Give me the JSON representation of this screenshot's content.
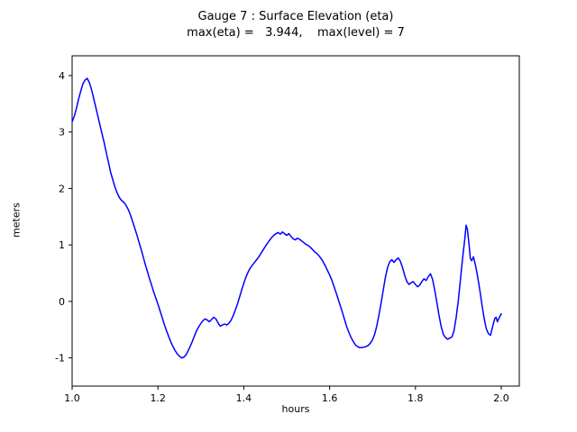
{
  "chart_data": {
    "type": "line",
    "title": "Gauge 7 : Surface Elevation (eta)",
    "subtitle": "max(eta) =   3.944,    max(level) = 7",
    "xlabel": "hours",
    "ylabel": "meters",
    "max_eta": 3.944,
    "max_level": 7,
    "xlim": [
      1.0,
      2.042
    ],
    "ylim": [
      -1.5,
      4.35
    ],
    "xticks": [
      1.0,
      1.2,
      1.4,
      1.6,
      1.8,
      2.0
    ],
    "xtick_labels": [
      "1.0",
      "1.2",
      "1.4",
      "1.6",
      "1.8",
      "2.0"
    ],
    "yticks": [
      -1,
      0,
      1,
      2,
      3,
      4
    ],
    "ytick_labels": [
      "-1",
      "0",
      "1",
      "2",
      "3",
      "4"
    ],
    "grid": false,
    "legend": "none",
    "line_color": "#0000ff",
    "frame_color": "#000000",
    "series": [
      {
        "name": "eta",
        "points": [
          [
            1.0,
            3.18
          ],
          [
            1.005,
            3.28
          ],
          [
            1.01,
            3.42
          ],
          [
            1.015,
            3.58
          ],
          [
            1.02,
            3.72
          ],
          [
            1.025,
            3.85
          ],
          [
            1.03,
            3.92
          ],
          [
            1.035,
            3.95
          ],
          [
            1.04,
            3.88
          ],
          [
            1.045,
            3.76
          ],
          [
            1.05,
            3.6
          ],
          [
            1.055,
            3.44
          ],
          [
            1.06,
            3.28
          ],
          [
            1.065,
            3.12
          ],
          [
            1.07,
            2.96
          ],
          [
            1.075,
            2.8
          ],
          [
            1.08,
            2.62
          ],
          [
            1.085,
            2.45
          ],
          [
            1.09,
            2.28
          ],
          [
            1.095,
            2.15
          ],
          [
            1.1,
            2.02
          ],
          [
            1.105,
            1.92
          ],
          [
            1.11,
            1.84
          ],
          [
            1.115,
            1.79
          ],
          [
            1.12,
            1.76
          ],
          [
            1.125,
            1.71
          ],
          [
            1.13,
            1.64
          ],
          [
            1.135,
            1.55
          ],
          [
            1.14,
            1.44
          ],
          [
            1.145,
            1.32
          ],
          [
            1.15,
            1.2
          ],
          [
            1.155,
            1.07
          ],
          [
            1.16,
            0.94
          ],
          [
            1.165,
            0.81
          ],
          [
            1.17,
            0.67
          ],
          [
            1.175,
            0.54
          ],
          [
            1.18,
            0.41
          ],
          [
            1.185,
            0.29
          ],
          [
            1.19,
            0.17
          ],
          [
            1.195,
            0.06
          ],
          [
            1.2,
            -0.05
          ],
          [
            1.205,
            -0.17
          ],
          [
            1.21,
            -0.29
          ],
          [
            1.215,
            -0.41
          ],
          [
            1.22,
            -0.52
          ],
          [
            1.225,
            -0.62
          ],
          [
            1.23,
            -0.72
          ],
          [
            1.235,
            -0.8
          ],
          [
            1.24,
            -0.87
          ],
          [
            1.245,
            -0.93
          ],
          [
            1.25,
            -0.97
          ],
          [
            1.255,
            -1.0
          ],
          [
            1.26,
            -0.99
          ],
          [
            1.265,
            -0.95
          ],
          [
            1.27,
            -0.88
          ],
          [
            1.275,
            -0.8
          ],
          [
            1.28,
            -0.71
          ],
          [
            1.285,
            -0.61
          ],
          [
            1.29,
            -0.52
          ],
          [
            1.295,
            -0.45
          ],
          [
            1.3,
            -0.39
          ],
          [
            1.305,
            -0.34
          ],
          [
            1.31,
            -0.31
          ],
          [
            1.315,
            -0.33
          ],
          [
            1.32,
            -0.36
          ],
          [
            1.325,
            -0.32
          ],
          [
            1.33,
            -0.28
          ],
          [
            1.335,
            -0.31
          ],
          [
            1.34,
            -0.38
          ],
          [
            1.345,
            -0.44
          ],
          [
            1.35,
            -0.42
          ],
          [
            1.355,
            -0.4
          ],
          [
            1.36,
            -0.42
          ],
          [
            1.365,
            -0.39
          ],
          [
            1.37,
            -0.34
          ],
          [
            1.375,
            -0.26
          ],
          [
            1.38,
            -0.16
          ],
          [
            1.385,
            -0.05
          ],
          [
            1.39,
            0.07
          ],
          [
            1.395,
            0.2
          ],
          [
            1.4,
            0.32
          ],
          [
            1.405,
            0.43
          ],
          [
            1.41,
            0.52
          ],
          [
            1.415,
            0.59
          ],
          [
            1.42,
            0.64
          ],
          [
            1.425,
            0.69
          ],
          [
            1.43,
            0.74
          ],
          [
            1.435,
            0.79
          ],
          [
            1.44,
            0.85
          ],
          [
            1.445,
            0.91
          ],
          [
            1.45,
            0.97
          ],
          [
            1.455,
            1.03
          ],
          [
            1.46,
            1.08
          ],
          [
            1.465,
            1.13
          ],
          [
            1.47,
            1.17
          ],
          [
            1.475,
            1.2
          ],
          [
            1.48,
            1.22
          ],
          [
            1.485,
            1.19
          ],
          [
            1.49,
            1.23
          ],
          [
            1.495,
            1.2
          ],
          [
            1.5,
            1.17
          ],
          [
            1.505,
            1.2
          ],
          [
            1.51,
            1.15
          ],
          [
            1.515,
            1.11
          ],
          [
            1.52,
            1.09
          ],
          [
            1.525,
            1.12
          ],
          [
            1.53,
            1.1
          ],
          [
            1.535,
            1.07
          ],
          [
            1.54,
            1.04
          ],
          [
            1.545,
            1.01
          ],
          [
            1.55,
            0.99
          ],
          [
            1.555,
            0.96
          ],
          [
            1.56,
            0.92
          ],
          [
            1.565,
            0.88
          ],
          [
            1.57,
            0.85
          ],
          [
            1.575,
            0.81
          ],
          [
            1.58,
            0.76
          ],
          [
            1.585,
            0.7
          ],
          [
            1.59,
            0.63
          ],
          [
            1.595,
            0.55
          ],
          [
            1.6,
            0.47
          ],
          [
            1.605,
            0.38
          ],
          [
            1.61,
            0.27
          ],
          [
            1.615,
            0.16
          ],
          [
            1.62,
            0.04
          ],
          [
            1.625,
            -0.08
          ],
          [
            1.63,
            -0.2
          ],
          [
            1.635,
            -0.33
          ],
          [
            1.64,
            -0.45
          ],
          [
            1.645,
            -0.55
          ],
          [
            1.65,
            -0.64
          ],
          [
            1.655,
            -0.71
          ],
          [
            1.66,
            -0.77
          ],
          [
            1.665,
            -0.8
          ],
          [
            1.67,
            -0.82
          ],
          [
            1.675,
            -0.82
          ],
          [
            1.68,
            -0.81
          ],
          [
            1.685,
            -0.8
          ],
          [
            1.69,
            -0.78
          ],
          [
            1.695,
            -0.74
          ],
          [
            1.7,
            -0.68
          ],
          [
            1.705,
            -0.58
          ],
          [
            1.71,
            -0.43
          ],
          [
            1.715,
            -0.24
          ],
          [
            1.72,
            -0.03
          ],
          [
            1.725,
            0.2
          ],
          [
            1.73,
            0.43
          ],
          [
            1.735,
            0.6
          ],
          [
            1.74,
            0.7
          ],
          [
            1.745,
            0.74
          ],
          [
            1.75,
            0.69
          ],
          [
            1.755,
            0.74
          ],
          [
            1.76,
            0.77
          ],
          [
            1.765,
            0.71
          ],
          [
            1.77,
            0.6
          ],
          [
            1.775,
            0.46
          ],
          [
            1.78,
            0.35
          ],
          [
            1.785,
            0.3
          ],
          [
            1.79,
            0.33
          ],
          [
            1.795,
            0.35
          ],
          [
            1.8,
            0.3
          ],
          [
            1.805,
            0.26
          ],
          [
            1.81,
            0.29
          ],
          [
            1.815,
            0.35
          ],
          [
            1.82,
            0.4
          ],
          [
            1.825,
            0.37
          ],
          [
            1.83,
            0.44
          ],
          [
            1.835,
            0.49
          ],
          [
            1.84,
            0.39
          ],
          [
            1.845,
            0.2
          ],
          [
            1.85,
            -0.02
          ],
          [
            1.855,
            -0.25
          ],
          [
            1.86,
            -0.45
          ],
          [
            1.865,
            -0.58
          ],
          [
            1.87,
            -0.64
          ],
          [
            1.875,
            -0.67
          ],
          [
            1.88,
            -0.65
          ],
          [
            1.885,
            -0.63
          ],
          [
            1.89,
            -0.52
          ],
          [
            1.895,
            -0.28
          ],
          [
            1.9,
            0.02
          ],
          [
            1.905,
            0.4
          ],
          [
            1.91,
            0.78
          ],
          [
            1.915,
            1.1
          ],
          [
            1.918,
            1.35
          ],
          [
            1.921,
            1.28
          ],
          [
            1.925,
            1.0
          ],
          [
            1.928,
            0.76
          ],
          [
            1.931,
            0.72
          ],
          [
            1.935,
            0.79
          ],
          [
            1.94,
            0.64
          ],
          [
            1.945,
            0.44
          ],
          [
            1.95,
            0.2
          ],
          [
            1.955,
            -0.06
          ],
          [
            1.96,
            -0.3
          ],
          [
            1.965,
            -0.48
          ],
          [
            1.97,
            -0.57
          ],
          [
            1.975,
            -0.6
          ],
          [
            1.98,
            -0.44
          ],
          [
            1.985,
            -0.3
          ],
          [
            1.988,
            -0.28
          ],
          [
            1.991,
            -0.36
          ],
          [
            1.994,
            -0.31
          ],
          [
            1.997,
            -0.26
          ],
          [
            2.0,
            -0.22
          ]
        ]
      }
    ]
  }
}
